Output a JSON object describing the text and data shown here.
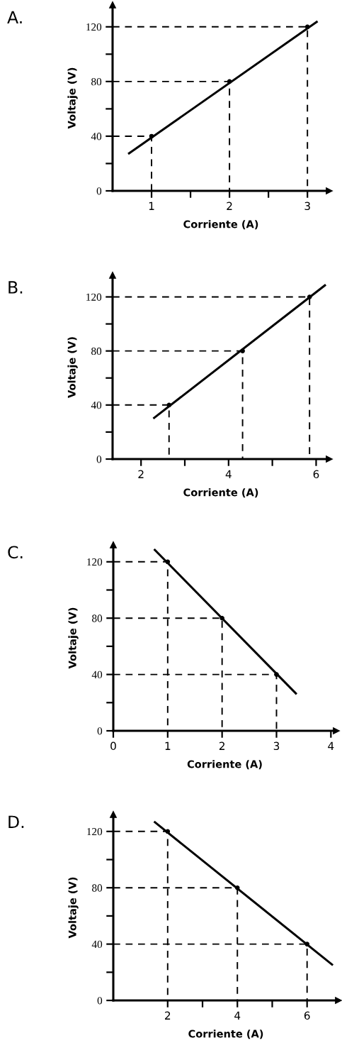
{
  "chart_data": [
    {
      "type": "line",
      "title": "A.",
      "xlabel": "Corriente (A)",
      "ylabel": "Voltaje (V)",
      "xlim": [
        0.5,
        3.28
      ],
      "ylim": [
        0,
        136
      ],
      "xticks": [
        1,
        {
          "value": 1.5,
          "label": null
        },
        2,
        {
          "value": 2.5,
          "label": null
        },
        3
      ],
      "yticks": [
        0,
        {
          "value": 20,
          "label": null
        },
        40,
        {
          "value": 60,
          "label": null
        },
        80,
        {
          "value": 100,
          "label": null
        },
        120
      ],
      "series": [
        {
          "x": [
            0.7,
            3.13
          ],
          "values": [
            27,
            124
          ],
          "color": "#000000"
        },
        {
          "type": "line",
          "line_style": "dashed",
          "x": [
            0.5,
            1,
            1
          ],
          "values": [
            40,
            40,
            0
          ],
          "color": "#000000"
        },
        {
          "type": "line",
          "line_style": "dashed",
          "x": [
            0.5,
            2,
            2
          ],
          "values": [
            80,
            80,
            0
          ],
          "color": "#000000"
        },
        {
          "type": "line",
          "line_style": "dashed",
          "x": [
            0.5,
            3,
            3
          ],
          "values": [
            120,
            120,
            0
          ],
          "color": "#000000"
        },
        {
          "type": "scatter",
          "x": [
            1,
            2,
            3
          ],
          "values": [
            40,
            80,
            120
          ],
          "color": "#000000",
          "marker": "circle"
        }
      ]
    },
    {
      "type": "line",
      "title": "B.",
      "xlabel": "Corriente (A)",
      "ylabel": "Voltaje (V)",
      "xlim": [
        1.35,
        6.3
      ],
      "ylim": [
        0,
        136
      ],
      "xticks": [
        2,
        {
          "value": 3,
          "label": null
        },
        4,
        {
          "value": 5,
          "label": null
        },
        6
      ],
      "yticks": [
        0,
        {
          "value": 20,
          "label": null
        },
        40,
        {
          "value": 60,
          "label": null
        },
        80,
        {
          "value": 100,
          "label": null
        },
        120
      ],
      "series": [
        {
          "x": [
            2.28,
            6.22
          ],
          "values": [
            30,
            129
          ],
          "color": "#000000"
        },
        {
          "type": "line",
          "line_style": "dashed",
          "x": [
            1.35,
            2.64,
            2.64
          ],
          "values": [
            40,
            40,
            0
          ],
          "color": "#000000"
        },
        {
          "type": "line",
          "line_style": "dashed",
          "x": [
            1.35,
            4.32,
            4.32
          ],
          "values": [
            80,
            80,
            0
          ],
          "color": "#000000"
        },
        {
          "type": "line",
          "line_style": "dashed",
          "x": [
            1.35,
            5.85,
            5.85
          ],
          "values": [
            120,
            120,
            0
          ],
          "color": "#000000"
        },
        {
          "type": "scatter",
          "x": [
            2.64,
            4.32,
            5.85
          ],
          "values": [
            40,
            80,
            120
          ],
          "color": "#000000",
          "marker": "circle"
        }
      ]
    },
    {
      "type": "line",
      "title": "C.",
      "xlabel": "Corriente (A)",
      "ylabel": "Voltaje (V)",
      "xlim": [
        0,
        4.1
      ],
      "ylim": [
        0,
        132
      ],
      "xticks": [
        0,
        1,
        2,
        3,
        4
      ],
      "yticks": [
        0,
        {
          "value": 20,
          "label": null
        },
        40,
        {
          "value": 60,
          "label": null
        },
        80,
        {
          "value": 100,
          "label": null
        },
        120
      ],
      "series": [
        {
          "x": [
            0.75,
            3.37
          ],
          "values": [
            129,
            26
          ],
          "color": "#000000"
        },
        {
          "type": "line",
          "line_style": "dashed",
          "x": [
            0,
            1,
            1
          ],
          "values": [
            120,
            120,
            0
          ],
          "color": "#000000"
        },
        {
          "type": "line",
          "line_style": "dashed",
          "x": [
            0,
            2,
            2
          ],
          "values": [
            80,
            80,
            0
          ],
          "color": "#000000"
        },
        {
          "type": "line",
          "line_style": "dashed",
          "x": [
            0,
            3,
            3
          ],
          "values": [
            40,
            40,
            0
          ],
          "color": "#000000"
        },
        {
          "type": "scatter",
          "x": [
            1,
            2,
            3
          ],
          "values": [
            120,
            80,
            40
          ],
          "color": "#000000",
          "marker": "circle"
        }
      ]
    },
    {
      "type": "line",
      "title": "D.",
      "xlabel": "Corriente (A)",
      "ylabel": "Voltaje (V)",
      "xlim": [
        0.44,
        6.9
      ],
      "ylim": [
        0,
        132
      ],
      "xticks": [
        2,
        {
          "value": 3,
          "label": null
        },
        4,
        {
          "value": 5,
          "label": null
        },
        6
      ],
      "yticks": [
        0,
        {
          "value": 20,
          "label": null
        },
        40,
        {
          "value": 60,
          "label": null
        },
        80,
        {
          "value": 100,
          "label": null
        },
        120
      ],
      "series": [
        {
          "x": [
            1.61,
            6.74
          ],
          "values": [
            127,
            25
          ],
          "color": "#000000"
        },
        {
          "type": "line",
          "line_style": "dashed",
          "x": [
            0.44,
            2,
            2
          ],
          "values": [
            120,
            120,
            0
          ],
          "color": "#000000"
        },
        {
          "type": "line",
          "line_style": "dashed",
          "x": [
            0.44,
            4,
            4
          ],
          "values": [
            80,
            80,
            0
          ],
          "color": "#000000"
        },
        {
          "type": "line",
          "line_style": "dashed",
          "x": [
            0.44,
            6,
            6
          ],
          "values": [
            40,
            40,
            0
          ],
          "color": "#000000"
        },
        {
          "type": "scatter",
          "x": [
            2,
            4,
            6
          ],
          "values": [
            120,
            80,
            40
          ],
          "color": "#000000",
          "marker": "circle"
        }
      ]
    }
  ]
}
